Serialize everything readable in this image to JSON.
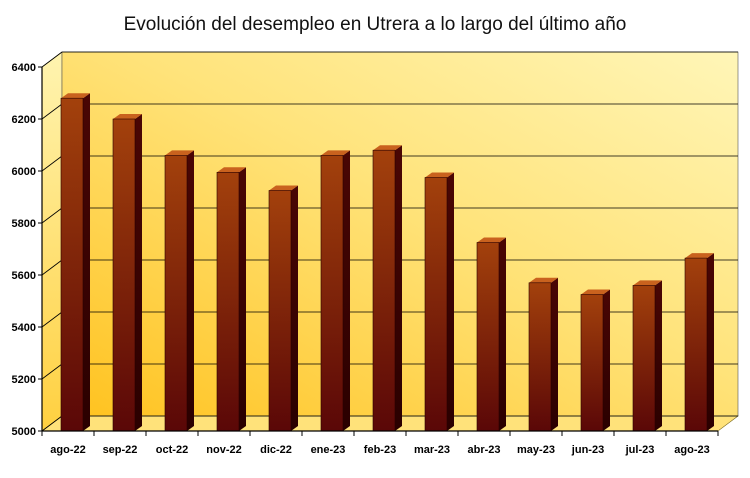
{
  "chart_data": {
    "type": "bar",
    "title": "Evolución del desempleo en Utrera a lo largo del último año",
    "xlabel": "",
    "ylabel": "",
    "categories": [
      "ago-22",
      "sep-22",
      "oct-22",
      "nov-22",
      "dic-22",
      "ene-23",
      "feb-23",
      "mar-23",
      "abr-23",
      "may-23",
      "jun-23",
      "jul-23",
      "ago-23"
    ],
    "values": [
      6280,
      6200,
      6060,
      5995,
      5925,
      6060,
      6080,
      5975,
      5725,
      5570,
      5525,
      5560,
      5665
    ],
    "ylim": [
      5000,
      6400
    ],
    "yticks": [
      5000,
      5200,
      5400,
      5600,
      5800,
      6000,
      6200,
      6400
    ],
    "grid": true,
    "legend": "none",
    "colors": {
      "bar_front_top": "#9b3a0a",
      "bar_front_bottom": "#5e0808",
      "bar_side": "#3a0202",
      "bar_top": "#c9621e",
      "background_top": "#fff3a8",
      "background_bottom": "#ffc21e",
      "gridline": "#000000"
    }
  }
}
